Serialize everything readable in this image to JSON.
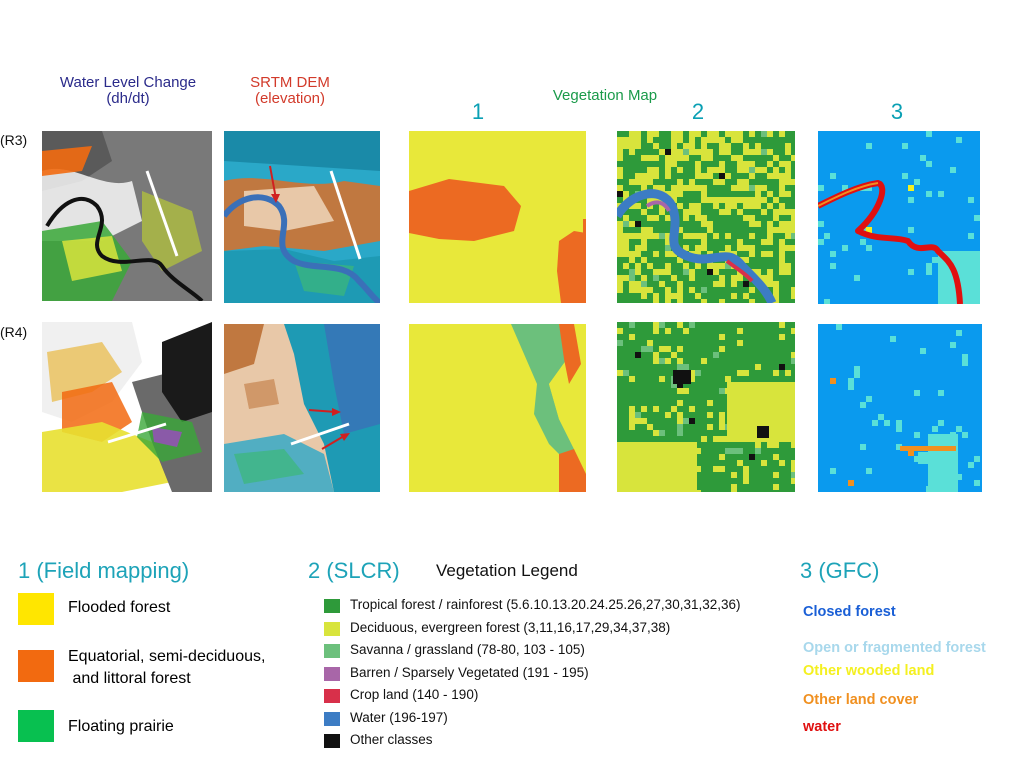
{
  "headers": {
    "water_level": {
      "line1": "Water Level Change",
      "line2": "(dh/dt)",
      "color": "#2a2a8a"
    },
    "srtm": {
      "line1": "SRTM DEM",
      "line2": "(elevation)",
      "color": "#d23a2a"
    },
    "vegetation": {
      "label": "Vegetation Map",
      "color": "#1a9a4a"
    },
    "numbers": [
      "1",
      "2",
      "3"
    ]
  },
  "rows": [
    "(R3)",
    "(R4)"
  ],
  "legend1": {
    "title": "1 (Field mapping)",
    "items": [
      {
        "label": "Flooded forest",
        "color": "#ffe600"
      },
      {
        "label": "Equatorial, semi-deciduous,",
        "label2": " and littoral forest",
        "color": "#f26a10"
      },
      {
        "label": "Floating prairie",
        "color": "#08c050"
      }
    ]
  },
  "legend2": {
    "title": "2 (SLCR)",
    "subtitle": "Vegetation Legend",
    "items": [
      {
        "label": "Tropical forest / rainforest (5.6.10.13.20.24.25.26,27,30,31,32,36)",
        "color": "#2e9a3a"
      },
      {
        "label": "Deciduous, evergreen forest (3,11,16,17,29,34,37,38)",
        "color": "#d8e43c"
      },
      {
        "label": "Savanna / grassland (78-80, 103 - 105)",
        "color": "#6cc07c"
      },
      {
        "label": "Barren / Sparsely Vegetated (191 - 195)",
        "color": "#a866a8"
      },
      {
        "label": "Crop land (140 - 190)",
        "color": "#d8304a"
      },
      {
        "label": "Water (196-197)",
        "color": "#3c7cc4"
      },
      {
        "label": "Other classes",
        "color": "#111111"
      }
    ]
  },
  "legend3": {
    "title": "3 (GFC)",
    "items": [
      {
        "label": "Closed forest",
        "color": "#1a5fd6"
      },
      {
        "label": "Open or fragmented forest",
        "color": "#a8d8ec"
      },
      {
        "label": "Other wooded land",
        "color": "#f4f020"
      },
      {
        "label": "Other land cover",
        "color": "#f09020"
      },
      {
        "label": "water",
        "color": "#e01010"
      }
    ]
  }
}
